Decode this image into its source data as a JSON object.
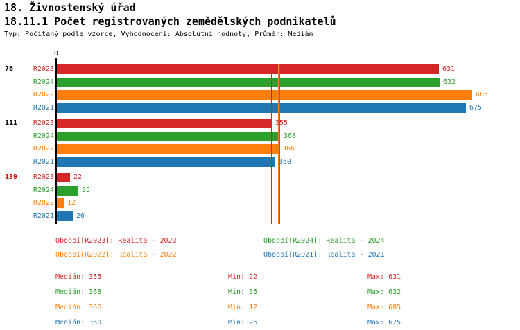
{
  "header": {
    "title_line1": "18. Živnostenský úřad",
    "title_line2": "18.11.1 Počet registrovaných zemědělských podnikatelů",
    "subtitle": "Typ: Počítaný podle vzorce, Vyhodnocení: Absolutní hodnoty, Průměr: Medián"
  },
  "colors": {
    "R2023": "#d62728",
    "R2024": "#2ca02c",
    "R2022": "#ff7f0e",
    "R2021": "#1f77b4",
    "axis": "#000000",
    "highlight_group_label": "#dd0000",
    "default_group_label": "#000000"
  },
  "chart_data": {
    "type": "bar",
    "orientation": "horizontal",
    "title": "18.11.1 Počet registrovaných zemědělských podnikatelů",
    "axis_zero_label": "0",
    "xlim": [
      0,
      692
    ],
    "grid": false,
    "series_order": [
      "R2023",
      "R2024",
      "R2022",
      "R2021"
    ],
    "groups": [
      {
        "label": "76",
        "label_color": "#000000",
        "values": {
          "R2023": 631,
          "R2024": 632,
          "R2022": 685,
          "R2021": 675
        }
      },
      {
        "label": "111",
        "label_color": "#000000",
        "values": {
          "R2023": 355,
          "R2024": 368,
          "R2022": 366,
          "R2021": 360
        }
      },
      {
        "label": "139",
        "label_color": "#dd0000",
        "values": {
          "R2023": 22,
          "R2024": 35,
          "R2022": 12,
          "R2021": 26
        }
      }
    ],
    "median_lines": {
      "R2023": 355,
      "R2024": 368,
      "R2022": 366,
      "R2021": 360
    }
  },
  "legend": {
    "items": [
      {
        "series": "R2023",
        "text": "Období[R2023]: Realita - 2023"
      },
      {
        "series": "R2024",
        "text": "Období[R2024]: Realita - 2024"
      },
      {
        "series": "R2022",
        "text": "Období[R2022]: Realita - 2022"
      },
      {
        "series": "R2021",
        "text": "Období[R2021]: Realita - 2021"
      }
    ]
  },
  "stats": {
    "labels": {
      "median": "Medián",
      "min": "Min",
      "max": "Max"
    },
    "rows": [
      {
        "series": "R2023",
        "median": 355,
        "min": 22,
        "max": 631
      },
      {
        "series": "R2024",
        "median": 368,
        "min": 35,
        "max": 632
      },
      {
        "series": "R2022",
        "median": 366,
        "min": 12,
        "max": 685
      },
      {
        "series": "R2021",
        "median": 360,
        "min": 26,
        "max": 675
      }
    ]
  }
}
